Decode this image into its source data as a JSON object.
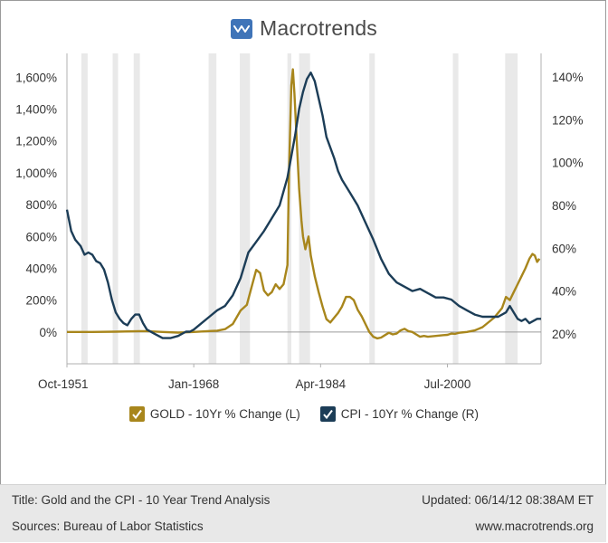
{
  "brand": {
    "name": "Macrotrends"
  },
  "chart_data": {
    "type": "line",
    "x_ticks": [
      "Oct-1951",
      "Jan-1968",
      "Apr-1984",
      "Jul-2000"
    ],
    "x_tick_years": [
      1951.75,
      1968.0,
      1984.25,
      2000.5
    ],
    "x_range": [
      1951.75,
      2012.5
    ],
    "left_axis": {
      "ticks": [
        "0%",
        "200%",
        "400%",
        "600%",
        "800%",
        "1,000%",
        "1,200%",
        "1,400%",
        "1,600%"
      ],
      "range": [
        -200,
        1750
      ]
    },
    "right_axis": {
      "ticks": [
        "20%",
        "40%",
        "60%",
        "80%",
        "100%",
        "120%",
        "140%"
      ],
      "range": [
        6,
        151
      ]
    },
    "recessions": [
      [
        1953.6,
        1954.4
      ],
      [
        1957.6,
        1958.3
      ],
      [
        1960.3,
        1961.1
      ],
      [
        1969.9,
        1970.9
      ],
      [
        1973.9,
        1975.2
      ],
      [
        1980.0,
        1980.5
      ],
      [
        1981.5,
        1982.9
      ],
      [
        1990.5,
        1991.2
      ],
      [
        2001.2,
        2001.9
      ],
      [
        2007.9,
        2009.5
      ]
    ],
    "series": [
      {
        "name": "GOLD - 10Yr % Change (L)",
        "axis": "left",
        "color": "#a8861c",
        "points": [
          [
            1951.75,
            0
          ],
          [
            1955,
            0
          ],
          [
            1958,
            2
          ],
          [
            1961,
            5
          ],
          [
            1962,
            5
          ],
          [
            1964,
            0
          ],
          [
            1966,
            -4
          ],
          [
            1967,
            -2
          ],
          [
            1968,
            0
          ],
          [
            1969,
            3
          ],
          [
            1970,
            6
          ],
          [
            1971,
            8
          ],
          [
            1972,
            18
          ],
          [
            1973,
            50
          ],
          [
            1974,
            135
          ],
          [
            1974.8,
            170
          ],
          [
            1975.5,
            300
          ],
          [
            1976,
            390
          ],
          [
            1976.5,
            370
          ],
          [
            1977,
            260
          ],
          [
            1977.5,
            230
          ],
          [
            1978,
            250
          ],
          [
            1978.5,
            300
          ],
          [
            1979,
            270
          ],
          [
            1979.5,
            300
          ],
          [
            1980,
            420
          ],
          [
            1980.2,
            1000
          ],
          [
            1980.5,
            1550
          ],
          [
            1980.7,
            1650
          ],
          [
            1980.9,
            1500
          ],
          [
            1981.2,
            1200
          ],
          [
            1981.5,
            900
          ],
          [
            1981.8,
            700
          ],
          [
            1982,
            600
          ],
          [
            1982.3,
            520
          ],
          [
            1982.7,
            600
          ],
          [
            1983,
            480
          ],
          [
            1983.5,
            350
          ],
          [
            1984,
            250
          ],
          [
            1984.5,
            160
          ],
          [
            1985,
            80
          ],
          [
            1985.5,
            60
          ],
          [
            1986,
            90
          ],
          [
            1986.5,
            120
          ],
          [
            1987,
            160
          ],
          [
            1987.5,
            220
          ],
          [
            1988,
            220
          ],
          [
            1988.5,
            200
          ],
          [
            1989,
            140
          ],
          [
            1989.5,
            100
          ],
          [
            1990,
            50
          ],
          [
            1990.5,
            0
          ],
          [
            1991,
            -30
          ],
          [
            1991.5,
            -40
          ],
          [
            1992,
            -35
          ],
          [
            1992.5,
            -20
          ],
          [
            1993,
            -5
          ],
          [
            1993.5,
            -15
          ],
          [
            1994,
            -10
          ],
          [
            1994.5,
            10
          ],
          [
            1995,
            20
          ],
          [
            1995.5,
            5
          ],
          [
            1996,
            0
          ],
          [
            1996.5,
            -15
          ],
          [
            1997,
            -30
          ],
          [
            1997.5,
            -25
          ],
          [
            1998,
            -30
          ],
          [
            1999,
            -25
          ],
          [
            2000,
            -20
          ],
          [
            2000.5,
            -18
          ],
          [
            2001,
            -10
          ],
          [
            2001.5,
            -12
          ],
          [
            2002,
            -5
          ],
          [
            2003,
            0
          ],
          [
            2004,
            10
          ],
          [
            2004.5,
            20
          ],
          [
            2005,
            30
          ],
          [
            2005.5,
            50
          ],
          [
            2006,
            70
          ],
          [
            2006.5,
            90
          ],
          [
            2007,
            120
          ],
          [
            2007.5,
            150
          ],
          [
            2008,
            220
          ],
          [
            2008.5,
            200
          ],
          [
            2009,
            250
          ],
          [
            2009.5,
            300
          ],
          [
            2010,
            350
          ],
          [
            2010.5,
            400
          ],
          [
            2011,
            460
          ],
          [
            2011.4,
            490
          ],
          [
            2011.7,
            480
          ],
          [
            2012,
            440
          ],
          [
            2012.3,
            460
          ]
        ]
      },
      {
        "name": "CPI - 10Yr % Change (R)",
        "axis": "right",
        "color": "#1c3d57",
        "points": [
          [
            1951.75,
            78
          ],
          [
            1952.3,
            68
          ],
          [
            1952.8,
            64
          ],
          [
            1953.5,
            61
          ],
          [
            1954,
            57
          ],
          [
            1954.5,
            58
          ],
          [
            1955,
            57
          ],
          [
            1955.5,
            54
          ],
          [
            1956,
            53
          ],
          [
            1956.5,
            50
          ],
          [
            1957,
            44
          ],
          [
            1957.5,
            36
          ],
          [
            1958,
            30
          ],
          [
            1958.5,
            27
          ],
          [
            1959,
            25
          ],
          [
            1959.5,
            24
          ],
          [
            1960,
            27
          ],
          [
            1960.5,
            29
          ],
          [
            1961,
            29
          ],
          [
            1961.5,
            25
          ],
          [
            1962,
            22
          ],
          [
            1963,
            20
          ],
          [
            1964,
            18
          ],
          [
            1965,
            18
          ],
          [
            1966,
            19
          ],
          [
            1967,
            21
          ],
          [
            1967.5,
            21
          ],
          [
            1968,
            22
          ],
          [
            1969,
            25
          ],
          [
            1970,
            28
          ],
          [
            1971,
            31
          ],
          [
            1972,
            33
          ],
          [
            1973,
            38
          ],
          [
            1974,
            46
          ],
          [
            1975,
            58
          ],
          [
            1976,
            63
          ],
          [
            1977,
            68
          ],
          [
            1978,
            74
          ],
          [
            1979,
            80
          ],
          [
            1980,
            93
          ],
          [
            1980.5,
            103
          ],
          [
            1981,
            113
          ],
          [
            1981.5,
            125
          ],
          [
            1982,
            133
          ],
          [
            1982.5,
            139
          ],
          [
            1983,
            142
          ],
          [
            1983.5,
            138
          ],
          [
            1984,
            130
          ],
          [
            1984.5,
            122
          ],
          [
            1985,
            112
          ],
          [
            1986,
            102
          ],
          [
            1986.5,
            96
          ],
          [
            1987,
            92
          ],
          [
            1988,
            86
          ],
          [
            1989,
            80
          ],
          [
            1990,
            72
          ],
          [
            1991,
            64
          ],
          [
            1992,
            55
          ],
          [
            1993,
            48
          ],
          [
            1994,
            44
          ],
          [
            1995,
            42
          ],
          [
            1996,
            40
          ],
          [
            1997,
            41
          ],
          [
            1998,
            39
          ],
          [
            1999,
            37
          ],
          [
            2000,
            37
          ],
          [
            2001,
            36
          ],
          [
            2002,
            33
          ],
          [
            2003,
            31
          ],
          [
            2004,
            29
          ],
          [
            2005,
            28
          ],
          [
            2006,
            28
          ],
          [
            2007,
            28
          ],
          [
            2008,
            30
          ],
          [
            2008.5,
            33
          ],
          [
            2009,
            30
          ],
          [
            2009.5,
            27
          ],
          [
            2010,
            26
          ],
          [
            2010.5,
            27
          ],
          [
            2011,
            25
          ],
          [
            2011.5,
            26
          ],
          [
            2012,
            27
          ],
          [
            2012.5,
            27
          ]
        ]
      }
    ]
  },
  "legend": {
    "gold_label": "GOLD - 10Yr % Change (L)",
    "cpi_label": "CPI - 10Yr % Change (R)",
    "gold_color": "#a8861c",
    "cpi_color": "#1c3d57"
  },
  "footer": {
    "title": "Title: Gold and the CPI - 10 Year Trend Analysis",
    "updated": "Updated: 06/14/12 08:38AM ET",
    "sources": "Sources: Bureau of Labor Statistics",
    "website": "www.macrotrends.org"
  }
}
